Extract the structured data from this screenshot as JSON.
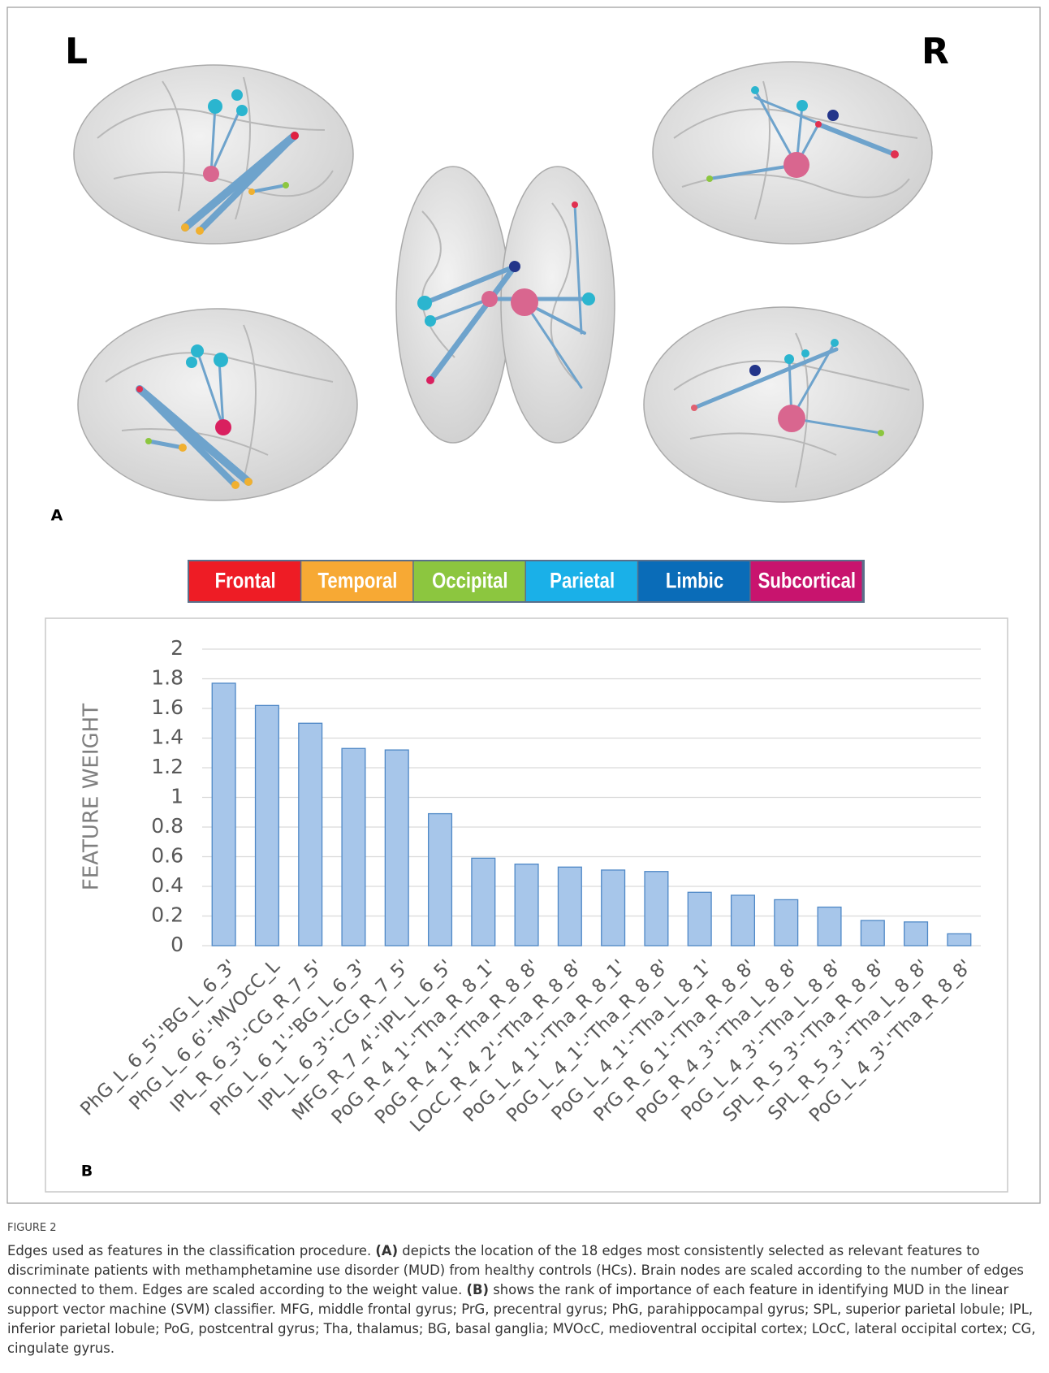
{
  "panel_a": {
    "left_label": "L",
    "right_label": "R",
    "panel_label": "A"
  },
  "legend": [
    {
      "label": "Frontal",
      "color": "#ee1c25"
    },
    {
      "label": "Temporal",
      "color": "#f7a934"
    },
    {
      "label": "Occipital",
      "color": "#8cc63f"
    },
    {
      "label": "Parietal",
      "color": "#1ab0e8"
    },
    {
      "label": "Limbic",
      "color": "#0a6cb8"
    },
    {
      "label": "Subcortical",
      "color": "#c8146e"
    }
  ],
  "chart_data": {
    "type": "bar",
    "panel_label": "B",
    "y_label": "FEATURE WEIGHT",
    "categories": [
      "PhG_L_6_5'-'BG_L_6_3'",
      "PhG_L_6_6'-'MVOcC_L",
      "IPL_R_6_3'-'CG_R_7_5'",
      "PhG_L_6_1'-'BG_L_6_3'",
      "IPL_L_6_3'-'CG_R_7_5'",
      "MFG_R_7_4'-'IPL_L_6_5'",
      "PoG_R_4_1'-'Tha_R_8_1'",
      "PoG_R_4_1'-'Tha_R_8_8'",
      "LOcC_R_4_2'-'Tha_R_8_8'",
      "PoG_L_4_1'-'Tha_R_8_1'",
      "PoG_L_4_1'-'Tha_R_8_8'",
      "PoG_L_4_1'-'Tha_L_8_1'",
      "PrG_R_6_1'-'Tha_R_8_8'",
      "PoG_R_4_3'-'Tha_L_8_8'",
      "PoG_L_4_3'-'Tha_L_8_8'",
      "SPL_R_5_3'-'Tha_R_8_8'",
      "SPL_R_5_3'-'Tha_L_8_8'",
      "PoG_L_4_3'-'Tha_R_8_8'"
    ],
    "values": [
      1.77,
      1.62,
      1.5,
      1.33,
      1.32,
      0.89,
      0.59,
      0.55,
      0.53,
      0.51,
      0.5,
      0.36,
      0.34,
      0.31,
      0.26,
      0.17,
      0.16,
      0.08
    ],
    "color": "#a7c6ea",
    "ylim": [
      0,
      2
    ],
    "yticks": [
      0,
      0.2,
      0.4,
      0.6,
      0.8,
      1,
      1.2,
      1.4,
      1.6,
      1.8,
      2
    ],
    "grid": true
  },
  "caption": {
    "label": "FIGURE 2",
    "parts": [
      "Edges used as features in the classification procedure. ",
      "(A)",
      " depicts the location of the 18 edges most consistently selected as relevant features to discriminate patients with methamphetamine use disorder (MUD) from healthy controls (HCs). Brain nodes are scaled according to the number of edges connected to them. Edges are scaled according to the weight value. ",
      "(B)",
      " shows the rank of importance of each feature in identifying MUD in the linear support vector machine (SVM) classifier. MFG, middle frontal gyrus; PrG, precentral gyrus; PhG, parahippocampal gyrus; SPL, superior parietal lobule; IPL, inferior parietal lobule; PoG, postcentral gyrus; Tha, thalamus; BG, basal ganglia; MVOcC, medioventral occipital cortex; LOcC, lateral occipital cortex; CG, cingulate gyrus."
    ]
  }
}
